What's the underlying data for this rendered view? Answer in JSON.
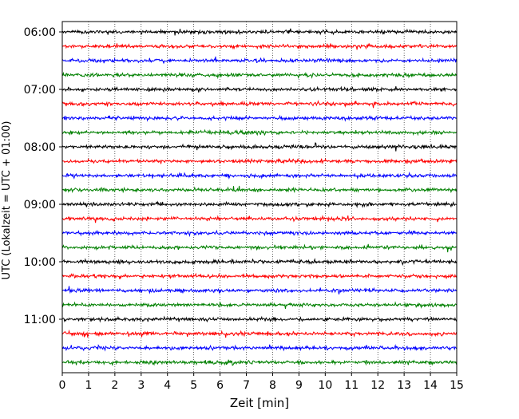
{
  "chart_data": {
    "type": "line",
    "title": "",
    "xlabel": "Zeit  [min]",
    "ylabel": "UTC (Lokalzeit = UTC + 01:00)",
    "xlim": [
      0,
      15
    ],
    "x_ticks": [
      "0",
      "1",
      "2",
      "3",
      "4",
      "5",
      "6",
      "7",
      "8",
      "9",
      "10",
      "11",
      "12",
      "13",
      "14",
      "15"
    ],
    "y_ticks": [
      "06:00",
      "07:00",
      "08:00",
      "09:00",
      "10:00",
      "11:00"
    ],
    "grid": {
      "x": true,
      "y": false,
      "style": "dotted"
    },
    "trace_colors_cycle": [
      "#000000",
      "#ff0000",
      "#0000ff",
      "#008000"
    ],
    "trace_interval_minutes": 15,
    "traces": [
      {
        "start": "06:00",
        "color": "#000000"
      },
      {
        "start": "06:15",
        "color": "#ff0000"
      },
      {
        "start": "06:30",
        "color": "#0000ff"
      },
      {
        "start": "06:45",
        "color": "#008000"
      },
      {
        "start": "07:00",
        "color": "#000000"
      },
      {
        "start": "07:15",
        "color": "#ff0000"
      },
      {
        "start": "07:30",
        "color": "#0000ff"
      },
      {
        "start": "07:45",
        "color": "#008000"
      },
      {
        "start": "08:00",
        "color": "#000000"
      },
      {
        "start": "08:15",
        "color": "#ff0000"
      },
      {
        "start": "08:30",
        "color": "#0000ff"
      },
      {
        "start": "08:45",
        "color": "#008000"
      },
      {
        "start": "09:00",
        "color": "#000000"
      },
      {
        "start": "09:15",
        "color": "#ff0000"
      },
      {
        "start": "09:30",
        "color": "#0000ff"
      },
      {
        "start": "09:45",
        "color": "#008000"
      },
      {
        "start": "10:00",
        "color": "#000000"
      },
      {
        "start": "10:15",
        "color": "#ff0000"
      },
      {
        "start": "10:30",
        "color": "#0000ff"
      },
      {
        "start": "10:45",
        "color": "#008000"
      },
      {
        "start": "11:00",
        "color": "#000000"
      },
      {
        "start": "11:15",
        "color": "#ff0000"
      },
      {
        "start": "11:30",
        "color": "#0000ff"
      },
      {
        "start": "11:45",
        "color": "#008000"
      }
    ]
  }
}
